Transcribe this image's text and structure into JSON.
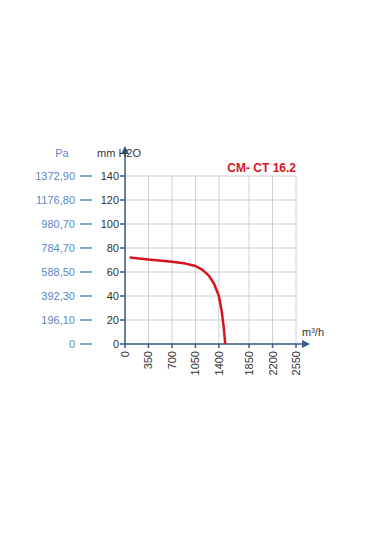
{
  "chart_data": {
    "type": "line",
    "title": "CM- CT 16.2",
    "x_label": "m³/h",
    "y_label": "mm H2O",
    "y2_label": "Pa",
    "x": [
      70,
      350,
      700,
      900,
      1050,
      1150,
      1250,
      1330,
      1400,
      1440,
      1470,
      1495
    ],
    "values": [
      72,
      70.5,
      68.5,
      67,
      65,
      62,
      57,
      50,
      40,
      28,
      15,
      0
    ],
    "color": "#d8141e",
    "xlim": [
      0,
      2550
    ],
    "xticks": [
      0,
      350,
      700,
      1050,
      1400,
      1850,
      2200,
      2550
    ],
    "ylim": [
      0,
      140
    ],
    "yticks": [
      0,
      20,
      40,
      60,
      80,
      100,
      120,
      140
    ],
    "y2lim": [
      0,
      1372.9
    ],
    "y2ticks": [
      {
        "value": 0,
        "label": "0"
      },
      {
        "value": 196.1,
        "label": "196,10"
      },
      {
        "value": 392.3,
        "label": "392,30"
      },
      {
        "value": 588.5,
        "label": "588,50"
      },
      {
        "value": 784.7,
        "label": "784,70"
      },
      {
        "value": 980.7,
        "label": "980,70"
      },
      {
        "value": 1176.8,
        "label": "1176,80"
      },
      {
        "value": 1372.9,
        "label": "1372,90"
      }
    ],
    "grid": true
  }
}
